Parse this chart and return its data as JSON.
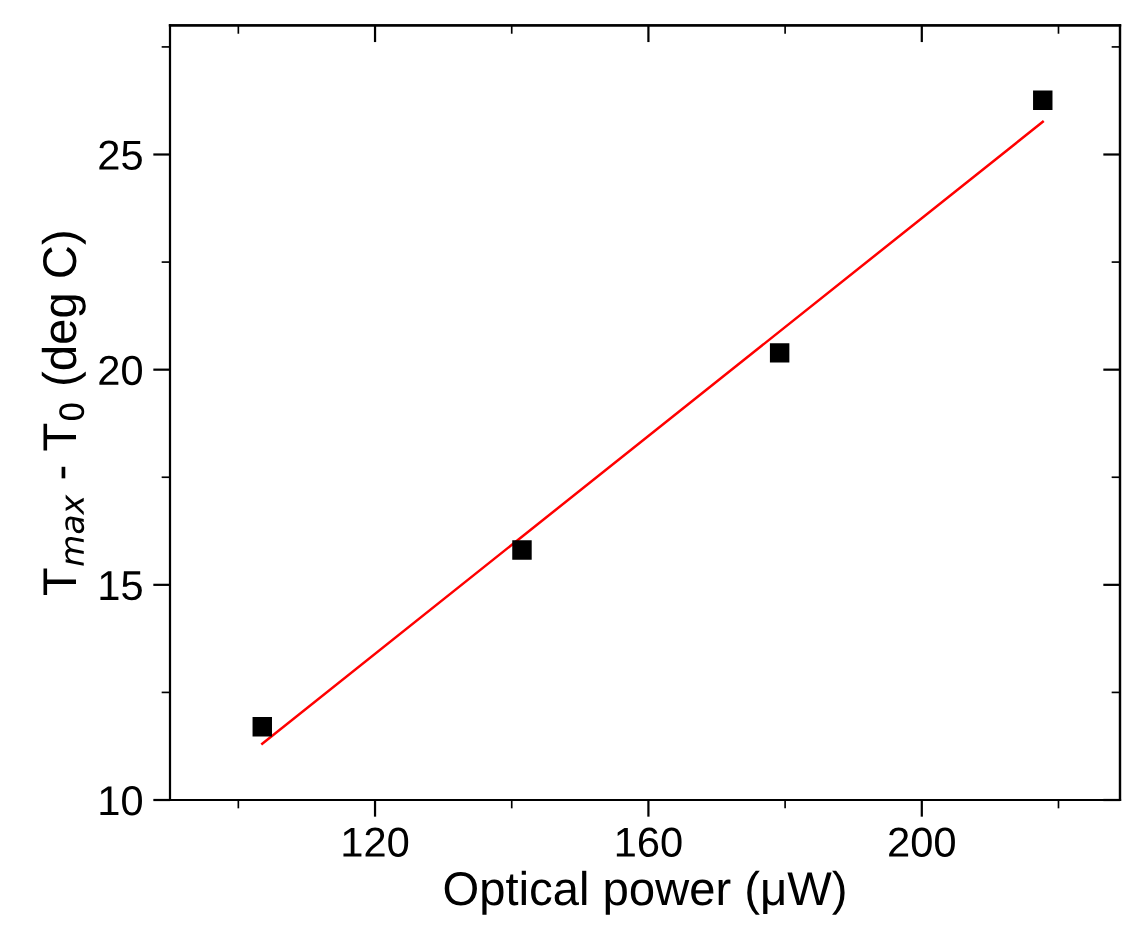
{
  "chart_data": {
    "type": "scatter",
    "xlabel": "Optical power (μW)",
    "ylabel": "T$_{max}$ - T$_{0}$ (deg C)",
    "xlim": [
      90,
      229
    ],
    "ylim": [
      10,
      28
    ],
    "xticks": [
      120,
      160,
      200
    ],
    "yticks": [
      10,
      15,
      20,
      25
    ],
    "grid": false,
    "legend": false,
    "series": [
      {
        "marker": "square",
        "color": "#000000",
        "x": [
          103.5,
          141.5,
          179.2,
          217.7
        ],
        "values": [
          11.7,
          15.81,
          20.39,
          26.26
        ]
      },
      {
        "type": "line",
        "color": "#ff0000",
        "x": [
          103.5,
          217.7
        ],
        "values": [
          11.31,
          25.76
        ],
        "line_style": "solid",
        "marker": "none"
      }
    ]
  }
}
